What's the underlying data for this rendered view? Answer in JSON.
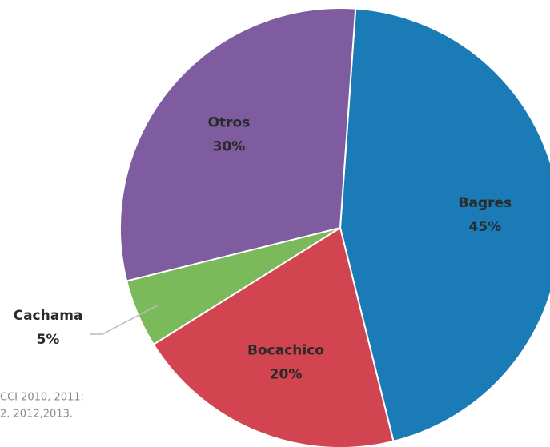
{
  "chart_data": {
    "type": "pie",
    "categories": [
      "Bagres",
      "Bocachico",
      "Cachama",
      "Otros"
    ],
    "values": [
      45,
      20,
      5,
      30
    ],
    "value_labels": [
      "45%",
      "20%",
      "5%",
      "30%"
    ],
    "colors": [
      "#1b7bb6",
      "#d2444f",
      "#7aba5b",
      "#7e5c9f"
    ],
    "source": [
      "CCI 2010, 2011;",
      "2. 2012,2013."
    ]
  }
}
